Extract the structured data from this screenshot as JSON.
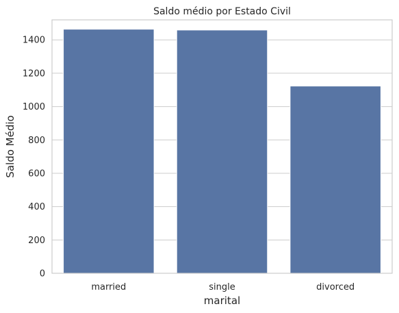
{
  "chart_data": {
    "type": "bar",
    "title": "Saldo médio por Estado Civil",
    "xlabel": "marital",
    "ylabel": "Saldo Médio",
    "categories": [
      "married",
      "single",
      "divorced"
    ],
    "values": [
      1464,
      1459,
      1123
    ],
    "ylim": [
      0,
      1520
    ],
    "yticks": [
      0,
      200,
      400,
      600,
      800,
      1000,
      1200,
      1400
    ],
    "grid": true,
    "bar_color": "#5875a4"
  }
}
